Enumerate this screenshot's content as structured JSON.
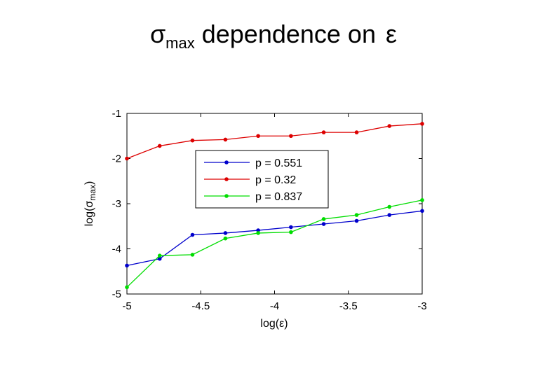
{
  "slide": {
    "title_symbol": "σ",
    "title_subscript": "max",
    "title_rest": "dependence on",
    "title_epsilon": "ε"
  },
  "chart_data": {
    "type": "line",
    "xlabel": "log(ε)",
    "ylabel_main": "log(σ",
    "ylabel_sub": "max",
    "ylabel_close": ")",
    "xlim": [
      -5,
      -3
    ],
    "ylim": [
      -5,
      -1
    ],
    "xticks": [
      -5,
      -4.5,
      -4,
      -3.5,
      -3
    ],
    "yticks": [
      -5,
      -4,
      -3,
      -2,
      -1
    ],
    "grid": false,
    "legend_position": "upper-center",
    "x": [
      -5,
      -4.778,
      -4.556,
      -4.333,
      -4.111,
      -3.889,
      -3.667,
      -3.444,
      -3.222,
      -3
    ],
    "series": [
      {
        "name": "p = 0.551",
        "color": "#0000cc",
        "values": [
          -4.37,
          -4.22,
          -3.69,
          -3.65,
          -3.59,
          -3.52,
          -3.45,
          -3.38,
          -3.25,
          -3.16
        ]
      },
      {
        "name": "p = 0.32",
        "color": "#dd0000",
        "values": [
          -2.0,
          -1.72,
          -1.6,
          -1.58,
          -1.5,
          -1.5,
          -1.42,
          -1.42,
          -1.28,
          -1.23
        ]
      },
      {
        "name": "p = 0.837",
        "color": "#00dd00",
        "values": [
          -4.85,
          -4.15,
          -4.13,
          -3.77,
          -3.65,
          -3.63,
          -3.34,
          -3.25,
          -3.07,
          -2.92
        ]
      }
    ]
  }
}
